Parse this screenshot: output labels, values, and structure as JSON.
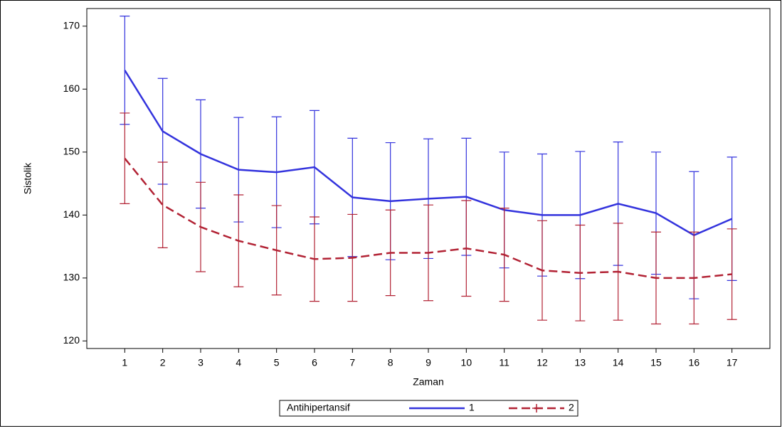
{
  "chart_data": {
    "type": "line",
    "x_label": "Zaman",
    "y_label": "Sistolik",
    "x": [
      1,
      2,
      3,
      4,
      5,
      6,
      7,
      8,
      9,
      10,
      11,
      12,
      13,
      14,
      15,
      16,
      17
    ],
    "xlim": [
      0,
      18
    ],
    "xticks": [
      1,
      2,
      3,
      4,
      5,
      6,
      7,
      8,
      9,
      10,
      11,
      12,
      13,
      14,
      15,
      16,
      17
    ],
    "ylim": [
      118.8,
      172.8
    ],
    "yticks": [
      120,
      130,
      140,
      150,
      160,
      170
    ],
    "legend_title": "Antihipertansif",
    "legend_position": "bottom",
    "series": [
      {
        "name": "1",
        "color": "#3333dd",
        "dash": false,
        "values": [
          163,
          153.3,
          149.7,
          147.2,
          146.8,
          147.6,
          142.8,
          142.2,
          142.6,
          142.9,
          140.8,
          140,
          140,
          141.8,
          140.3,
          136.8,
          139.4
        ],
        "errors": [
          8.6,
          8.4,
          8.6,
          8.3,
          8.8,
          9,
          9.4,
          9.3,
          9.5,
          9.3,
          9.2,
          9.7,
          10.1,
          9.8,
          9.7,
          10.1,
          9.8
        ]
      },
      {
        "name": "2",
        "color": "#b22234",
        "dash": true,
        "values": [
          149,
          141.6,
          138.1,
          135.9,
          134.4,
          133,
          133.2,
          134,
          134,
          134.7,
          133.7,
          131.2,
          130.8,
          131,
          130,
          130,
          130.6
        ],
        "errors": [
          7.2,
          6.8,
          7.1,
          7.3,
          7.1,
          6.7,
          6.9,
          6.8,
          7.6,
          7.6,
          7.4,
          7.9,
          7.6,
          7.7,
          7.3,
          7.3,
          7.2
        ]
      }
    ]
  }
}
